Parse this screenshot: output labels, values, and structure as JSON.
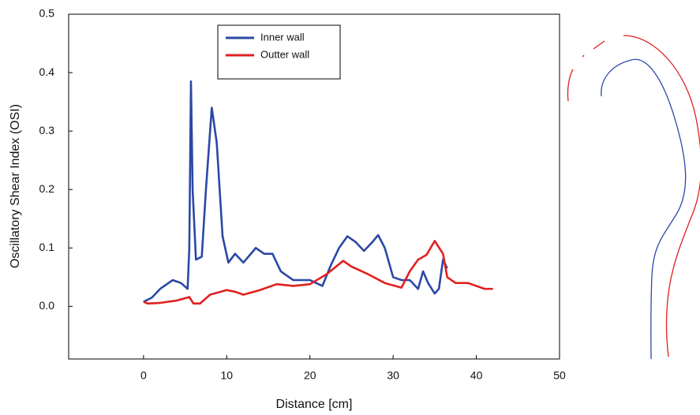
{
  "chart_data": {
    "type": "line",
    "x_label": "Distance [cm]",
    "y_label": "Oscillatory Shear Index (OSI)",
    "xlim": [
      -9,
      50
    ],
    "ylim": [
      -0.09,
      0.5
    ],
    "xticks": [
      0,
      10,
      20,
      30,
      40,
      50
    ],
    "yticks": [
      {
        "value": 0,
        "label": "0.0"
      },
      {
        "value": 0.1,
        "label": "0.1"
      },
      {
        "value": 0.2,
        "label": "0.2"
      },
      {
        "value": 0.3,
        "label": "0.3"
      },
      {
        "value": 0.4,
        "label": "0.4"
      },
      {
        "value": 0.5,
        "label": "0.5"
      }
    ],
    "legend_position": "top",
    "series": [
      {
        "name": "Inner wall",
        "color": "#2b48a6",
        "x": [
          0,
          1,
          2,
          3.5,
          4.5,
          5.3,
          5.5,
          5.7,
          5.9,
          6.3,
          7,
          7.5,
          8.2,
          8.8,
          9.5,
          10.2,
          11,
          12,
          13.5,
          14.5,
          15.5,
          16.5,
          18,
          20,
          21.5,
          22.5,
          23.5,
          24.5,
          25.5,
          26.5,
          27.5,
          28.2,
          29,
          30,
          31,
          32,
          33,
          33.6,
          34.2,
          35,
          35.5,
          36,
          36.5
        ],
        "values": [
          0.008,
          0.015,
          0.03,
          0.045,
          0.04,
          0.03,
          0.1,
          0.385,
          0.2,
          0.08,
          0.085,
          0.2,
          0.34,
          0.28,
          0.12,
          0.075,
          0.09,
          0.075,
          0.1,
          0.09,
          0.09,
          0.06,
          0.045,
          0.045,
          0.035,
          0.07,
          0.1,
          0.12,
          0.11,
          0.095,
          0.11,
          0.122,
          0.1,
          0.05,
          0.045,
          0.045,
          0.03,
          0.06,
          0.04,
          0.022,
          0.03,
          0.08,
          0.065
        ]
      },
      {
        "name": "Outter wall",
        "color": "#e02020",
        "x": [
          0,
          0.5,
          2,
          4,
          5.5,
          6,
          6.8,
          8,
          10,
          11,
          12,
          14,
          16,
          18,
          20,
          22,
          24,
          25,
          27,
          29,
          31,
          32,
          33,
          34,
          35,
          36,
          36.5,
          37.5,
          39,
          40,
          41,
          42
        ],
        "values": [
          0.008,
          0.005,
          0.006,
          0.01,
          0.016,
          0.005,
          0.005,
          0.02,
          0.028,
          0.025,
          0.02,
          0.028,
          0.038,
          0.035,
          0.038,
          0.055,
          0.078,
          0.068,
          0.055,
          0.04,
          0.032,
          0.06,
          0.08,
          0.088,
          0.112,
          0.09,
          0.05,
          0.04,
          0.04,
          0.035,
          0.03,
          0.03
        ]
      }
    ]
  }
}
